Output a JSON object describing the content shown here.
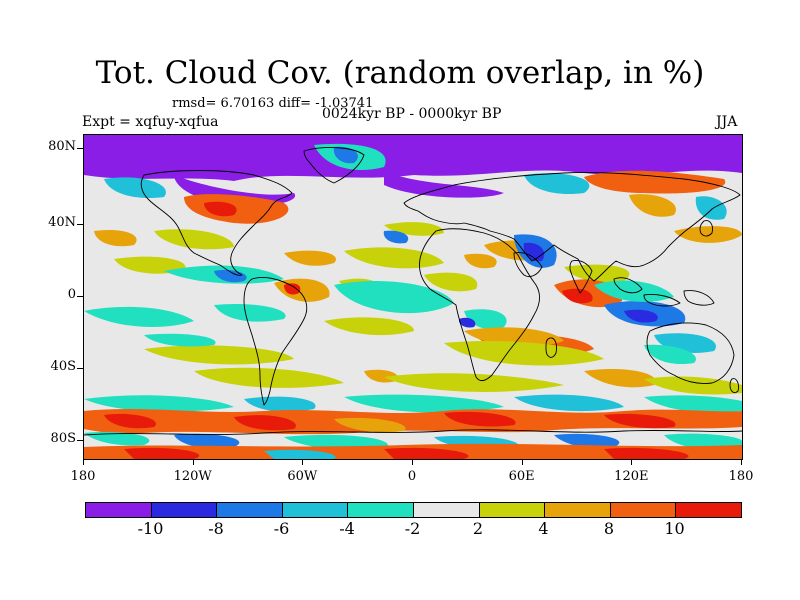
{
  "title": "Tot. Cloud Cov. (random overlap, in %)",
  "stats": "rmsd= 6.70163 diff= -1.03741",
  "period": "0024kyr BP - 0000kyr BP",
  "experiment": "Expt = xqfuy-xqfua",
  "season": "JJA",
  "lat_labels": [
    "80N",
    "40N",
    "0",
    "40S",
    "80S"
  ],
  "lon_labels": [
    "180",
    "120W",
    "60W",
    "0",
    "60E",
    "120E",
    "180"
  ],
  "colorbar": {
    "labels": [
      "-10",
      "-8",
      "-6",
      "-4",
      "-2",
      "2",
      "4",
      "8",
      "10"
    ],
    "colors": [
      "#8a1ee6",
      "#2a2ae0",
      "#1e78e6",
      "#20c0d8",
      "#20e0c0",
      "#e8e8e8",
      "#c8d20a",
      "#e6a30a",
      "#f06010",
      "#e81a0a"
    ]
  },
  "chart_data": {
    "type": "heatmap",
    "title": "Tot. Cloud Cov. (random overlap, in %)",
    "subtitle": "0024kyr BP - 0000kyr BP",
    "variable": "Total cloud cover difference (%)",
    "season": "JJA",
    "rmsd": 6.70163,
    "diff": -1.03741,
    "lat_range": [
      -90,
      90
    ],
    "lon_range": [
      -180,
      180
    ],
    "contour_levels": [
      -10,
      -8,
      -6,
      -4,
      -2,
      2,
      4,
      8,
      10
    ]
  }
}
